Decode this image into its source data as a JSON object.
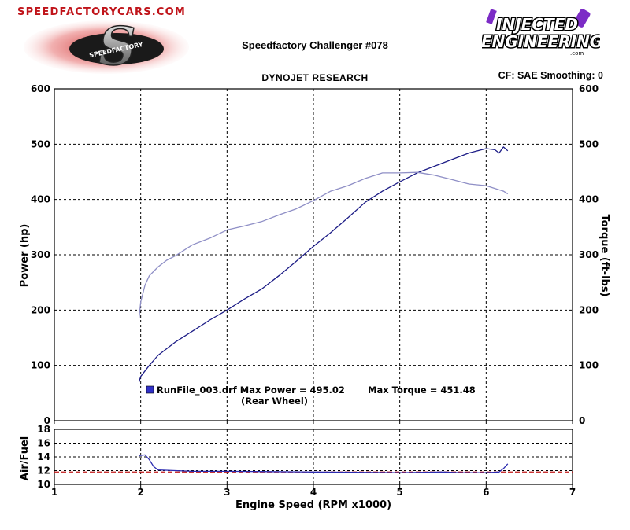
{
  "header": {
    "site_url": "SPEEDFACTORYCARS.COM",
    "left_logo": {
      "letter": "S",
      "text": "SPEEDFACTORY"
    },
    "right_logo": {
      "line1": "INJECTED",
      "line2": "ENGINEERING",
      "small": ".com"
    },
    "title": "Speedfactory Challenger #078",
    "subtitle": "DYNOJET RESEARCH",
    "cf_info": "CF: SAE  Smoothing: 0"
  },
  "colors": {
    "power": "#1c1c86",
    "torque": "#8f8fc6",
    "afr": "#2b2bb0",
    "afr_target": "#c01818",
    "grid": "#000000"
  },
  "chart_data": [
    {
      "type": "line",
      "name": "power-torque",
      "xlabel": "",
      "ylabel": "Power (hp)",
      "ylabel_right": "Torque (ft-lbs)",
      "xlim": [
        1,
        7
      ],
      "ylim": [
        0,
        600
      ],
      "ylim_right": [
        0,
        600
      ],
      "x_ticks": [
        1,
        2,
        3,
        4,
        5,
        6,
        7
      ],
      "y_ticks": [
        0,
        100,
        200,
        300,
        400,
        500,
        600
      ],
      "grid": true,
      "legend_position": "bottom-left",
      "series": [
        {
          "key": "power",
          "axis": "left",
          "x": [
            1.98,
            2.0,
            2.1,
            2.2,
            2.4,
            2.6,
            2.8,
            3.0,
            3.2,
            3.4,
            3.6,
            3.8,
            4.0,
            4.2,
            4.4,
            4.6,
            4.8,
            5.0,
            5.2,
            5.4,
            5.6,
            5.8,
            6.0,
            6.1,
            6.15,
            6.2,
            6.25
          ],
          "y": [
            70,
            80,
            100,
            118,
            142,
            162,
            182,
            200,
            220,
            238,
            262,
            288,
            315,
            340,
            367,
            395,
            415,
            432,
            448,
            460,
            472,
            484,
            492,
            490,
            484,
            495,
            488
          ]
        },
        {
          "key": "torque",
          "axis": "right",
          "x": [
            1.98,
            2.0,
            2.05,
            2.1,
            2.2,
            2.3,
            2.4,
            2.6,
            2.8,
            3.0,
            3.2,
            3.4,
            3.6,
            3.8,
            4.0,
            4.2,
            4.4,
            4.6,
            4.8,
            5.0,
            5.2,
            5.4,
            5.6,
            5.8,
            6.0,
            6.1,
            6.2,
            6.25
          ],
          "y": [
            185,
            215,
            245,
            262,
            278,
            290,
            298,
            318,
            330,
            345,
            352,
            360,
            372,
            383,
            398,
            415,
            425,
            438,
            448,
            448,
            449,
            444,
            436,
            428,
            425,
            420,
            415,
            410
          ]
        }
      ],
      "annotation": {
        "legend_label": "RunFile_003.drf Max Power = 495.02",
        "max_torque": "Max Torque = 451.48",
        "note": "(Rear Wheel)"
      }
    },
    {
      "type": "line",
      "name": "air-fuel",
      "xlabel": "Engine Speed (RPM x1000)",
      "ylabel": "Air/Fuel",
      "xlim": [
        1,
        7
      ],
      "ylim": [
        10,
        18
      ],
      "x_ticks": [
        1,
        2,
        3,
        4,
        5,
        6,
        7
      ],
      "y_ticks": [
        10,
        12,
        14,
        16,
        18
      ],
      "grid": true,
      "target": 11.8,
      "series": [
        {
          "key": "afr",
          "x": [
            1.98,
            2.05,
            2.1,
            2.15,
            2.2,
            2.4,
            2.6,
            3.0,
            3.5,
            4.0,
            4.5,
            5.0,
            5.5,
            5.7,
            6.0,
            6.15,
            6.2,
            6.25
          ],
          "y": [
            14.2,
            14.3,
            13.6,
            12.6,
            12.1,
            12.0,
            11.9,
            11.9,
            11.85,
            11.8,
            11.75,
            11.7,
            11.8,
            11.7,
            11.7,
            11.8,
            12.3,
            13.0
          ]
        }
      ]
    }
  ]
}
